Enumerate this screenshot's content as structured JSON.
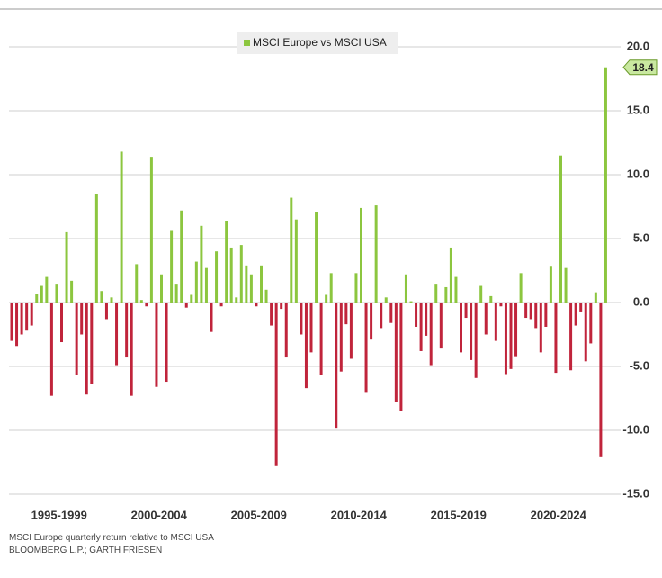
{
  "chart_data": {
    "type": "bar",
    "series": [
      {
        "name": "MSCI Europe vs MSCI USA",
        "color": "#8cc63f",
        "negative_color": "#c0243b",
        "values": [
          -3.0,
          -3.4,
          -2.5,
          -2.2,
          -1.8,
          0.7,
          1.3,
          2.0,
          -7.3,
          1.4,
          -3.1,
          5.5,
          1.7,
          -5.7,
          -2.5,
          -7.2,
          -6.4,
          8.5,
          0.9,
          -1.3,
          0.4,
          -4.9,
          11.8,
          -4.3,
          -7.3,
          3.0,
          0.2,
          -0.3,
          11.4,
          -6.6,
          2.2,
          -6.2,
          5.6,
          1.4,
          7.2,
          -0.4,
          0.6,
          3.2,
          6.0,
          2.7,
          -2.3,
          4.0,
          -0.3,
          6.4,
          4.3,
          0.4,
          4.5,
          2.9,
          2.2,
          -0.3,
          2.9,
          1.0,
          -1.8,
          -12.8,
          -0.5,
          -4.3,
          8.2,
          6.5,
          -2.5,
          -6.7,
          -3.9,
          7.1,
          -5.7,
          0.6,
          2.3,
          -9.8,
          -5.4,
          -1.7,
          -4.4,
          2.3,
          7.4,
          -7.0,
          -2.9,
          7.6,
          -2.0,
          0.4,
          -1.6,
          -7.8,
          -8.5,
          2.2,
          0.1,
          -1.9,
          -3.8,
          -2.6,
          -4.9,
          1.4,
          -3.6,
          1.2,
          4.3,
          2.0,
          -3.9,
          -1.2,
          -4.5,
          -5.9,
          1.3,
          -2.5,
          0.5,
          -3.0,
          -0.3,
          -5.6,
          -5.2,
          -4.2,
          2.3,
          -1.2,
          -1.3,
          -2.0,
          -3.9,
          -1.9,
          2.8,
          -5.5,
          11.5,
          2.7,
          -5.3,
          -1.8,
          -0.7,
          -4.6,
          -3.2,
          0.8,
          -12.1,
          18.4
        ]
      }
    ],
    "categories": [
      null,
      null,
      null,
      null,
      null,
      null,
      null,
      null,
      null,
      null,
      "1995-1999",
      null,
      null,
      null,
      null,
      null,
      null,
      null,
      null,
      null,
      null,
      null,
      null,
      null,
      null,
      null,
      null,
      null,
      null,
      null,
      "2000-2004",
      null,
      null,
      null,
      null,
      null,
      null,
      null,
      null,
      null,
      null,
      null,
      null,
      null,
      null,
      null,
      null,
      null,
      null,
      null,
      "2005-2009",
      null,
      null,
      null,
      null,
      null,
      null,
      null,
      null,
      null,
      null,
      null,
      null,
      null,
      null,
      null,
      null,
      null,
      null,
      null,
      "2010-2014",
      null,
      null,
      null,
      null,
      null,
      null,
      null,
      null,
      null,
      null,
      null,
      null,
      null,
      null,
      null,
      null,
      null,
      null,
      null,
      "2015-2019",
      null,
      null,
      null,
      null,
      null,
      null,
      null,
      null,
      null,
      null,
      null,
      null,
      null,
      null,
      null,
      null,
      null,
      null,
      null,
      "2020-2024",
      null,
      null,
      null,
      null,
      null,
      null,
      null,
      null,
      null
    ],
    "ylim": [
      -15,
      20
    ],
    "yticks": [
      {
        "value": 20,
        "label": "20.0"
      },
      {
        "value": 15,
        "label": "15.0"
      },
      {
        "value": 10,
        "label": "10.0"
      },
      {
        "value": 5,
        "label": "5.0"
      },
      {
        "value": 0,
        "label": "0.0"
      },
      {
        "value": -5,
        "label": "-5.0"
      },
      {
        "value": -10,
        "label": "-10.0"
      },
      {
        "value": -15,
        "label": "-15.0"
      }
    ],
    "grid": true,
    "legend": "top",
    "caption": "MSCI Europe quarterly return relative to MSCI USA",
    "source": "BLOOMBERG L.P.; GARTH FRIESEN"
  }
}
